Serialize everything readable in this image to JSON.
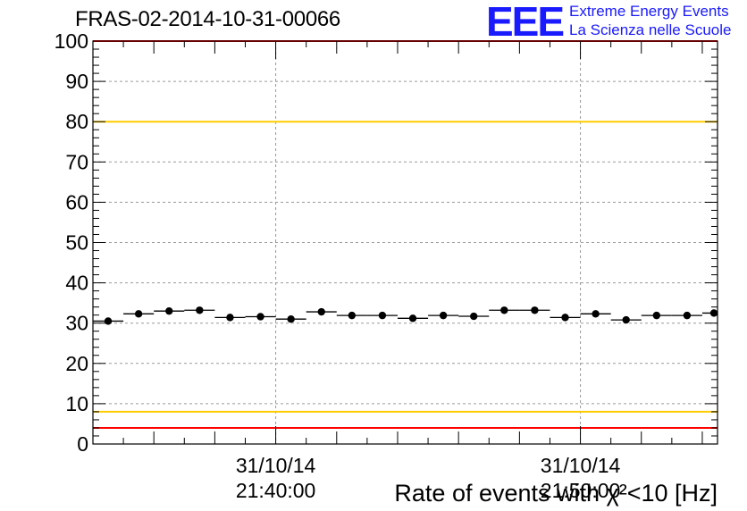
{
  "chart_data": {
    "type": "scatter",
    "title": "FRAS-02-2014-10-31-00066",
    "xlabel": "Rate of events with χ²<10 [Hz]",
    "ylabel": "",
    "ylim": [
      0,
      100
    ],
    "yticks": [
      0,
      10,
      20,
      30,
      40,
      50,
      60,
      70,
      80,
      90,
      100
    ],
    "x_tick_labels": [
      {
        "date": "31/10/14",
        "time": "21:40:00"
      },
      {
        "date": "31/10/14",
        "time": "21:50:00"
      }
    ],
    "x_time_range": [
      "21:34:00",
      "21:54:30"
    ],
    "bin_width_minutes": 1,
    "grid": true,
    "series": [
      {
        "x_start_minutes_after_2130": [
          4.0,
          5.0,
          6.0,
          7.0,
          8.0,
          9.0,
          10.0,
          11.0,
          12.0,
          13.0,
          14.0,
          15.0,
          16.0,
          17.0,
          18.0,
          19.0,
          20.0,
          21.0,
          22.0,
          23.0,
          24.0
        ],
        "values": [
          30.5,
          32.3,
          33.0,
          33.2,
          31.4,
          31.6,
          31.0,
          32.8,
          31.9,
          31.9,
          31.2,
          31.9,
          31.7,
          33.2,
          33.2,
          31.4,
          32.3,
          30.8,
          31.9,
          31.9,
          32.5
        ]
      }
    ],
    "reference_lines": [
      {
        "value": 100,
        "color": "#ff0000"
      },
      {
        "value": 80,
        "color": "#ffcc00"
      },
      {
        "value": 8,
        "color": "#ffcc00"
      },
      {
        "value": 4,
        "color": "#ff0000"
      }
    ]
  },
  "logo": {
    "mark": "EEE",
    "line1": "Extreme Energy Events",
    "line2": "La Scienza nelle Scuole",
    "color": "#1a1aff"
  }
}
